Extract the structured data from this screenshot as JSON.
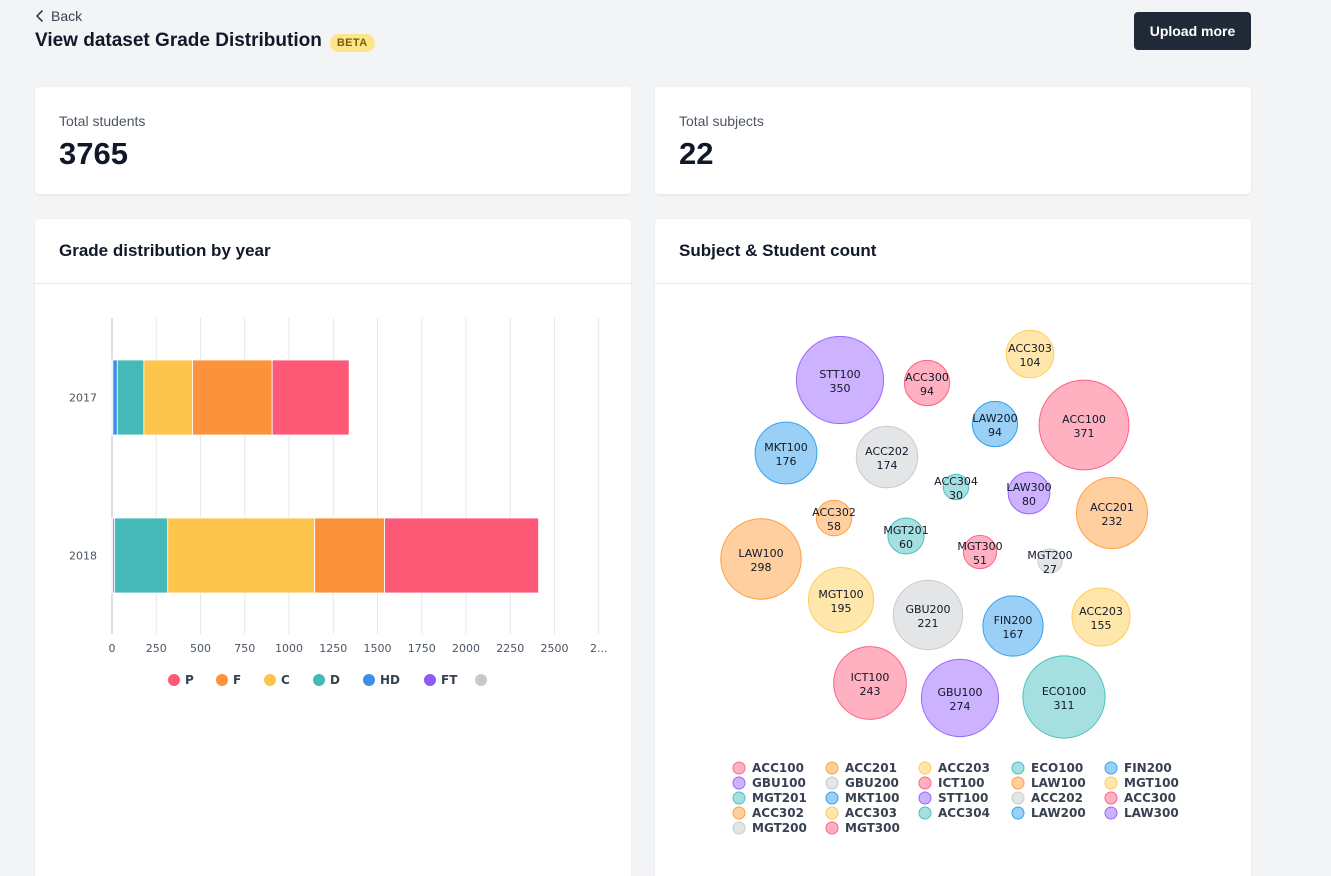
{
  "header": {
    "back_label": "Back",
    "title": "View dataset Grade Distribution",
    "badge": "BETA",
    "upload_label": "Upload more"
  },
  "stats": {
    "students_label": "Total students",
    "students_value": "3765",
    "subjects_label": "Total subjects",
    "subjects_value": "22"
  },
  "grade_panel": {
    "title": "Grade distribution by year"
  },
  "subject_panel": {
    "title": "Subject & Student count"
  },
  "chart_data": [
    {
      "type": "bar",
      "orientation": "horizontal",
      "stacked": true,
      "title": "Grade distribution by year",
      "categories": [
        "2017",
        "2018"
      ],
      "series": [
        {
          "name": "FT",
          "color": "#8b5cf6",
          "values": [
            5,
            5
          ]
        },
        {
          "name": "HD",
          "color": "#3b8fe8",
          "values": [
            25,
            10
          ]
        },
        {
          "name": "D",
          "color": "#45b8b8",
          "values": [
            150,
            300
          ]
        },
        {
          "name": "C",
          "color": "#fdc54b",
          "values": [
            275,
            830
          ]
        },
        {
          "name": "F",
          "color": "#fd923c",
          "values": [
            450,
            395
          ]
        },
        {
          "name": "P",
          "color": "#fe5a78",
          "values": [
            435,
            870
          ]
        },
        {
          "name": "",
          "color": "#c8c9cc",
          "values": [
            0,
            0
          ]
        }
      ],
      "legend_order": [
        "P",
        "F",
        "C",
        "D",
        "HD",
        "FT",
        ""
      ],
      "xlim": [
        0,
        2750
      ],
      "xticks": [
        "0",
        "250",
        "500",
        "750",
        "1000",
        "1250",
        "1500",
        "1750",
        "2000",
        "2250",
        "2500",
        "2..."
      ],
      "grid": true,
      "legend_position": "bottom"
    },
    {
      "type": "bubble",
      "title": "Subject & Student count",
      "legend_position": "bottom",
      "items": [
        {
          "label": "ACC100",
          "value": 371,
          "color": "#ffb1c1",
          "stroke": "#ff6384"
        },
        {
          "label": "ACC201",
          "value": 232,
          "color": "#ffcf9f",
          "stroke": "#ff9f40"
        },
        {
          "label": "ACC203",
          "value": 155,
          "color": "#ffe6aa",
          "stroke": "#ffcd56"
        },
        {
          "label": "ECO100",
          "value": 311,
          "color": "#a5dfdf",
          "stroke": "#4bc0c0"
        },
        {
          "label": "FIN200",
          "value": 167,
          "color": "#9ad0f5",
          "stroke": "#36a2eb"
        },
        {
          "label": "GBU100",
          "value": 274,
          "color": "#ccb2ff",
          "stroke": "#9966ff"
        },
        {
          "label": "GBU200",
          "value": 221,
          "color": "#e4e5e7",
          "stroke": "#c9cbcf"
        },
        {
          "label": "ICT100",
          "value": 243,
          "color": "#ffb1c1",
          "stroke": "#ff6384"
        },
        {
          "label": "LAW100",
          "value": 298,
          "color": "#ffcf9f",
          "stroke": "#ff9f40"
        },
        {
          "label": "MGT100",
          "value": 195,
          "color": "#ffe6aa",
          "stroke": "#ffcd56"
        },
        {
          "label": "MGT201",
          "value": 60,
          "color": "#a5dfdf",
          "stroke": "#4bc0c0"
        },
        {
          "label": "MKT100",
          "value": 176,
          "color": "#9ad0f5",
          "stroke": "#36a2eb"
        },
        {
          "label": "STT100",
          "value": 350,
          "color": "#ccb2ff",
          "stroke": "#9966ff"
        },
        {
          "label": "ACC202",
          "value": 174,
          "color": "#e4e5e7",
          "stroke": "#c9cbcf"
        },
        {
          "label": "ACC300",
          "value": 94,
          "color": "#ffb1c1",
          "stroke": "#ff6384"
        },
        {
          "label": "ACC302",
          "value": 58,
          "color": "#ffcf9f",
          "stroke": "#ff9f40"
        },
        {
          "label": "ACC303",
          "value": 104,
          "color": "#ffe6aa",
          "stroke": "#ffcd56"
        },
        {
          "label": "ACC304",
          "value": 30,
          "color": "#a5dfdf",
          "stroke": "#4bc0c0"
        },
        {
          "label": "LAW200",
          "value": 94,
          "color": "#9ad0f5",
          "stroke": "#36a2eb"
        },
        {
          "label": "LAW300",
          "value": 80,
          "color": "#ccb2ff",
          "stroke": "#9966ff"
        },
        {
          "label": "MGT200",
          "value": 27,
          "color": "#e4e5e7",
          "stroke": "#c9cbcf"
        },
        {
          "label": "MGT300",
          "value": 51,
          "color": "#ffb1c1",
          "stroke": "#ff6384"
        }
      ]
    }
  ]
}
